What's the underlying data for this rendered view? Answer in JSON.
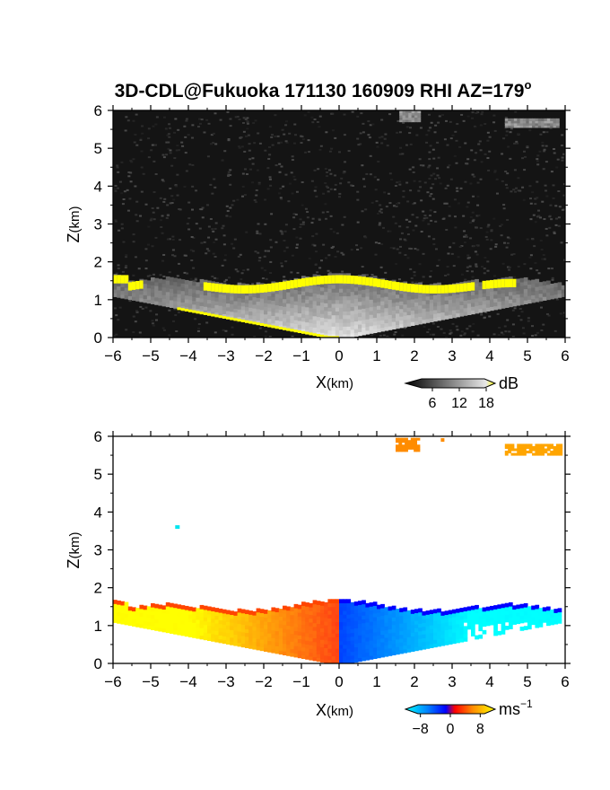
{
  "chart_data": [
    {
      "type": "heatmap",
      "panel": "reflectivity",
      "title": "3D-CDL@Fukuoka 171130 160909 RHI AZ=179",
      "title_suffix": "o",
      "xlabel_main": "X",
      "xlabel_unit": "(km)",
      "ylabel_main": "Z",
      "ylabel_unit": "(km)",
      "xlim": [
        -6,
        6
      ],
      "ylim": [
        0,
        6
      ],
      "x_ticks": [
        "−6",
        "−5",
        "−4",
        "−3",
        "−2",
        "−1",
        "0",
        "1",
        "2",
        "3",
        "4",
        "5",
        "6"
      ],
      "y_ticks": [
        "0",
        "1",
        "2",
        "3",
        "4",
        "5",
        "6"
      ],
      "colorbar": {
        "unit": "dB",
        "ticks": [
          6,
          12,
          18
        ],
        "tick_labels": [
          "6",
          "12",
          "18"
        ],
        "range": [
          0,
          20
        ]
      },
      "features": {
        "boundary_layer_top_km": 1.5,
        "saturated_layer_color": "#ffff00",
        "cloud_patches": [
          {
            "x": [
              1.6,
              2.1
            ],
            "z": [
              5.7,
              5.95
            ]
          },
          {
            "x": [
              4.4,
              5.8
            ],
            "z": [
              5.55,
              5.75
            ]
          }
        ]
      }
    },
    {
      "type": "heatmap",
      "panel": "doppler_velocity",
      "xlabel_main": "X",
      "xlabel_unit": "(km)",
      "ylabel_main": "Z",
      "ylabel_unit": "(km)",
      "xlim": [
        -6,
        6
      ],
      "ylim": [
        0,
        6
      ],
      "x_ticks": [
        "−6",
        "−5",
        "−4",
        "−3",
        "−2",
        "−1",
        "0",
        "1",
        "2",
        "3",
        "4",
        "5",
        "6"
      ],
      "y_ticks": [
        "0",
        "1",
        "2",
        "3",
        "4",
        "5",
        "6"
      ],
      "colorbar": {
        "unit": "ms",
        "unit_exp": "−1",
        "ticks": [
          -8,
          0,
          8
        ],
        "tick_labels": [
          "−8",
          "0",
          "8"
        ],
        "range": [
          -12,
          12
        ]
      },
      "features": {
        "negative_side": "x > 0 (blue / cyan)",
        "positive_side": "x < 0 (orange / yellow)",
        "cloud_patches": [
          {
            "x": [
              1.5,
              2.1
            ],
            "z": [
              5.6,
              5.95
            ],
            "color": "#ff8c00"
          },
          {
            "x": [
              4.4,
              5.9
            ],
            "z": [
              5.5,
              5.75
            ],
            "color": "#ffa500"
          }
        ]
      }
    }
  ]
}
